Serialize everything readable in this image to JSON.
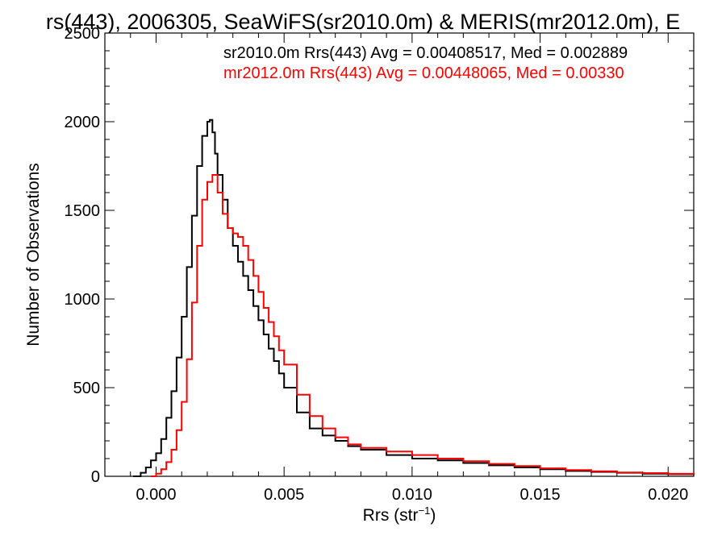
{
  "chart_data": {
    "type": "line",
    "title": "rs(443), 2006305, SeaWiFS(sr2010.0m) & MERIS(mr2012.0m), E",
    "xlabel_main": "Rrs (str",
    "xlabel_sup": "−1",
    "xlabel_end": ")",
    "ylabel": "Number of Observations",
    "xlim": [
      -0.002,
      0.021
    ],
    "ylim": [
      0,
      2500
    ],
    "xticks": [
      0.0,
      0.005,
      0.01,
      0.015,
      0.02
    ],
    "xtick_labels": [
      "0.000",
      "0.005",
      "0.010",
      "0.015",
      "0.020"
    ],
    "yticks": [
      0,
      500,
      1000,
      1500,
      2000,
      2500
    ],
    "ytick_labels": [
      "0",
      "500",
      "1000",
      "1500",
      "2000",
      "2500"
    ],
    "legend_placement": "top-right",
    "series": [
      {
        "name": "sr2010.0m",
        "legend_text": "sr2010.0m Rrs(443) Avg = 0.00408517, Med = 0.002889",
        "color": "#000000",
        "x": [
          -0.0009,
          -0.0006,
          -0.0004,
          -0.0002,
          0.0,
          0.0002,
          0.0004,
          0.0006,
          0.0008,
          0.001,
          0.0012,
          0.0014,
          0.0016,
          0.0018,
          0.002,
          0.0021,
          0.0022,
          0.0023,
          0.0024,
          0.0026,
          0.0028,
          0.003,
          0.0032,
          0.0034,
          0.0036,
          0.0038,
          0.004,
          0.0042,
          0.0044,
          0.0046,
          0.0048,
          0.005,
          0.0055,
          0.006,
          0.0065,
          0.007,
          0.0075,
          0.008,
          0.009,
          0.01,
          0.011,
          0.012,
          0.013,
          0.014,
          0.015,
          0.016,
          0.017,
          0.018,
          0.019,
          0.02,
          0.021
        ],
        "y": [
          0,
          20,
          50,
          90,
          130,
          210,
          330,
          480,
          670,
          900,
          1180,
          1470,
          1750,
          1920,
          2000,
          2010,
          1940,
          1820,
          1700,
          1560,
          1400,
          1300,
          1210,
          1130,
          1050,
          960,
          880,
          800,
          720,
          650,
          580,
          500,
          360,
          270,
          230,
          200,
          170,
          150,
          120,
          100,
          90,
          75,
          62,
          50,
          40,
          30,
          25,
          20,
          15,
          12,
          8
        ]
      },
      {
        "name": "mr2012.0m",
        "legend_text": "mr2012.0m Rrs(443) Avg = 0.00448065, Med = 0.00330",
        "color": "#ff0000",
        "x": [
          -0.0002,
          0.0,
          0.0002,
          0.0004,
          0.0006,
          0.0008,
          0.001,
          0.0012,
          0.0014,
          0.0016,
          0.0018,
          0.002,
          0.0022,
          0.0024,
          0.0026,
          0.0028,
          0.003,
          0.0032,
          0.0034,
          0.0036,
          0.0038,
          0.004,
          0.0042,
          0.0044,
          0.0046,
          0.0048,
          0.005,
          0.0055,
          0.006,
          0.0065,
          0.007,
          0.0075,
          0.008,
          0.009,
          0.01,
          0.011,
          0.012,
          0.013,
          0.014,
          0.015,
          0.016,
          0.017,
          0.018,
          0.019,
          0.02,
          0.021
        ],
        "y": [
          0,
          15,
          40,
          80,
          150,
          260,
          420,
          660,
          980,
          1300,
          1560,
          1660,
          1700,
          1600,
          1480,
          1400,
          1370,
          1350,
          1300,
          1220,
          1130,
          1040,
          950,
          870,
          790,
          710,
          630,
          460,
          340,
          270,
          220,
          180,
          160,
          140,
          120,
          100,
          85,
          70,
          58,
          45,
          35,
          28,
          22,
          18,
          14,
          10
        ]
      }
    ]
  }
}
